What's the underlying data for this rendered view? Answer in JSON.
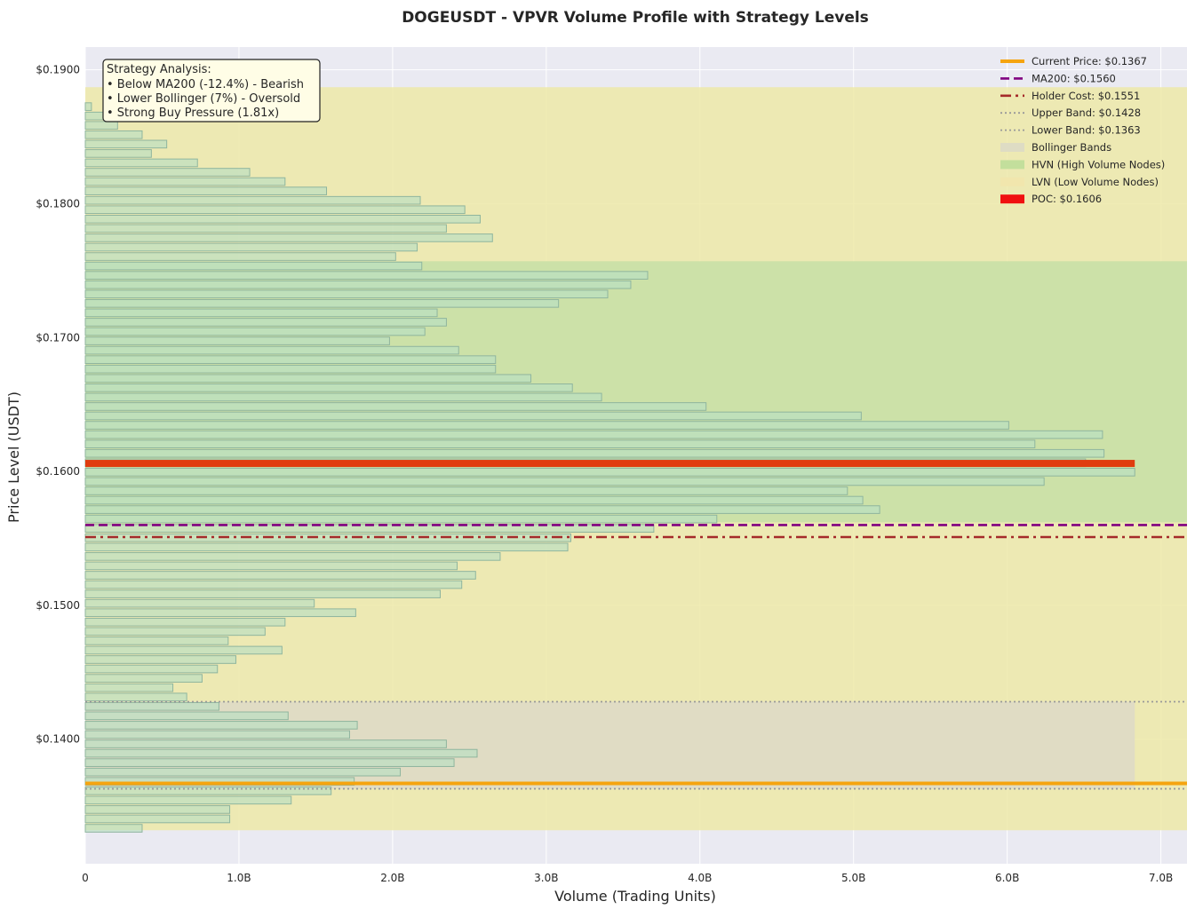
{
  "chart_data": {
    "type": "bar",
    "orientation": "horizontal",
    "title": "DOGEUSDT - VPVR Volume Profile with Strategy Levels",
    "xlabel": "Volume (Trading Units)",
    "ylabel": "Price Level (USDT)",
    "xlim": [
      0,
      7.17
    ],
    "ylim": [
      0.1307,
      0.1917
    ],
    "x_unit": "billions of trading units",
    "x_ticks": [
      0,
      1,
      2,
      3,
      4,
      5,
      6,
      7
    ],
    "x_tick_labels": [
      "0",
      "1.0B",
      "2.0B",
      "3.0B",
      "4.0B",
      "5.0B",
      "6.0B",
      "7.0B"
    ],
    "y_ticks": [
      0.14,
      0.15,
      0.16,
      0.17,
      0.18,
      0.19
    ],
    "y_tick_labels": [
      "$0.1400",
      "$0.1500",
      "$0.1600",
      "$0.1700",
      "$0.1800",
      "$0.1900"
    ],
    "grid": true,
    "legend_position": "top-right",
    "annotation": {
      "title": "Strategy Analysis:",
      "lines": [
        "• Below MA200 (-12.4%) - Bearish",
        "• Lower Bollinger (7%) - Oversold",
        "• Strong Buy Pressure (1.81x)"
      ]
    },
    "profile": {
      "price_start": 0.13335,
      "price_step": 0.0007,
      "volumes": [
        0.37,
        0.94,
        0.94,
        1.34,
        1.6,
        1.75,
        2.05,
        2.4,
        2.55,
        2.35,
        1.72,
        1.77,
        1.32,
        0.87,
        0.66,
        0.57,
        0.76,
        0.86,
        0.98,
        1.28,
        0.93,
        1.17,
        1.3,
        1.76,
        1.49,
        2.31,
        2.45,
        2.54,
        2.42,
        2.7,
        3.14,
        3.16,
        3.7,
        4.11,
        5.17,
        5.06,
        4.96,
        6.24,
        6.83,
        6.51,
        6.63,
        6.18,
        6.62,
        6.01,
        5.05,
        4.04,
        3.36,
        3.17,
        2.9,
        2.67,
        2.67,
        2.43,
        1.98,
        2.21,
        2.35,
        2.29,
        3.08,
        3.4,
        3.55,
        3.66,
        2.19,
        2.02,
        2.16,
        2.65,
        2.35,
        2.57,
        2.47,
        2.18,
        1.57,
        1.3,
        1.07,
        0.73,
        0.43,
        0.53,
        0.37,
        0.21,
        0.12,
        0.04
      ]
    },
    "zones": [
      {
        "name": "LVN (Low Volume Nodes)",
        "from": 0.1332,
        "to": 0.1887,
        "color": "#ede9a8"
      },
      {
        "name": "HVN (High Volume Nodes)",
        "from": 0.1562,
        "to": 0.1757,
        "color": "#c6dfa6"
      },
      {
        "name": "Bollinger Bands",
        "from": 0.1363,
        "to": 0.1428,
        "x_to": 6.83,
        "color": "#ddd9c7"
      }
    ],
    "levels": [
      {
        "name": "Current Price",
        "label": "Current Price: $0.1367",
        "value": 0.1367,
        "color": "#f5a40f",
        "style": "solid"
      },
      {
        "name": "MA200",
        "label": "MA200: $0.1560",
        "value": 0.156,
        "color": "#800080",
        "style": "dashed"
      },
      {
        "name": "Holder Cost",
        "label": "Holder Cost: $0.1551",
        "value": 0.1551,
        "color": "#a52a2a",
        "style": "dashdot"
      },
      {
        "name": "Upper Band",
        "label": "Upper Band: $0.1428",
        "value": 0.1428,
        "color": "#999999",
        "style": "dotted"
      },
      {
        "name": "Lower Band",
        "label": "Lower Band: $0.1363",
        "value": 0.1363,
        "color": "#999999",
        "style": "dotted"
      },
      {
        "name": "POC",
        "label": "POC: $0.1606",
        "value": 0.1606,
        "volume": 6.83,
        "color": "#e03c0f",
        "style": "bar"
      }
    ],
    "legend": [
      {
        "label": "Current Price: $0.1367",
        "kind": "line",
        "color": "#f5a40f",
        "style": "solid"
      },
      {
        "label": "MA200: $0.1560",
        "kind": "line",
        "color": "#800080",
        "style": "dashed"
      },
      {
        "label": "Holder Cost: $0.1551",
        "kind": "line",
        "color": "#a52a2a",
        "style": "dashdot"
      },
      {
        "label": "Upper Band: $0.1428",
        "kind": "line",
        "color": "#999999",
        "style": "dotted"
      },
      {
        "label": "Lower Band: $0.1363",
        "kind": "line",
        "color": "#999999",
        "style": "dotted"
      },
      {
        "label": "Bollinger Bands",
        "kind": "patch",
        "color": "#dedcc4"
      },
      {
        "label": "HVN (High Volume Nodes)",
        "kind": "patch",
        "color": "#c3df9c"
      },
      {
        "label": "LVN (Low Volume Nodes)",
        "kind": "patch",
        "color": "#f1e6ad"
      },
      {
        "label": "POC: $0.1606",
        "kind": "patch",
        "color": "#f01010"
      }
    ],
    "colors": {
      "plot_background": "#eaeaf2",
      "bar_fill": "#b9dfc3",
      "bar_stroke": "#8fb59e"
    }
  }
}
